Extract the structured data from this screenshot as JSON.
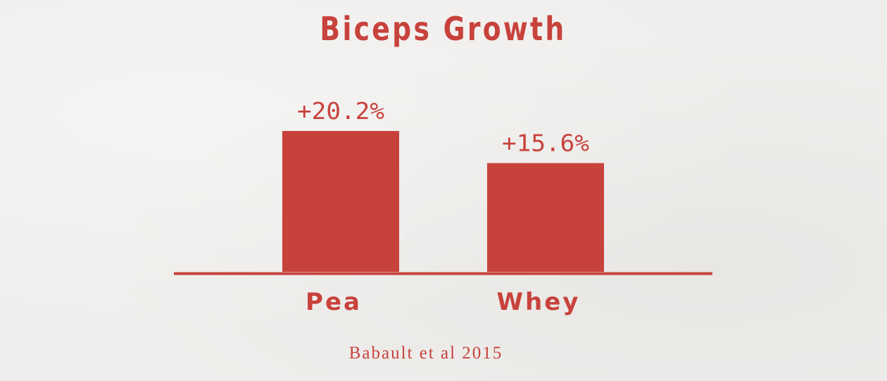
{
  "colors": {
    "background": "#efeeec",
    "accent": "#c8423c"
  },
  "source": "Babault et al 2015",
  "chart_data": {
    "type": "bar",
    "title": "Biceps Growth",
    "xlabel": "",
    "ylabel": "",
    "categories": [
      "Pea",
      "Whey"
    ],
    "values": [
      20.2,
      15.6
    ],
    "data_labels": [
      "+20.2%",
      "+15.6%"
    ],
    "unit": "%",
    "ylim": [
      0,
      20.2
    ],
    "grid": false,
    "legend": "none"
  }
}
